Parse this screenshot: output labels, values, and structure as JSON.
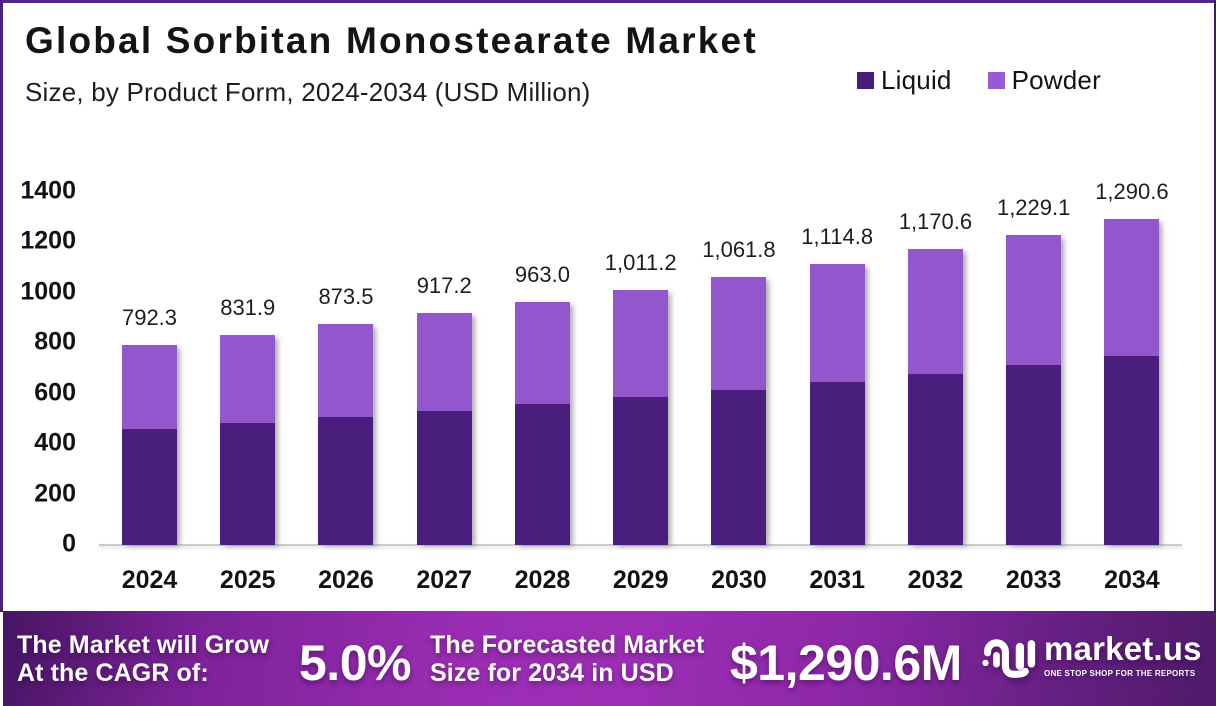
{
  "header": {
    "title": "Global Sorbitan Monostearate Market",
    "subtitle": "Size, by Product Form, 2024-2034 (USD Million)"
  },
  "legend": {
    "items": [
      {
        "label": "Liquid",
        "color": "#491d7c"
      },
      {
        "label": "Powder",
        "color": "#9859d4"
      }
    ]
  },
  "chart_data": {
    "type": "bar",
    "stacked": true,
    "title": "Global Sorbitan Monostearate Market",
    "subtitle": "Size, by Product Form, 2024-2034 (USD Million)",
    "unit": "USD Million",
    "categories": [
      "2024",
      "2025",
      "2026",
      "2027",
      "2028",
      "2029",
      "2030",
      "2031",
      "2032",
      "2033",
      "2034"
    ],
    "series": [
      {
        "name": "Liquid",
        "color": "#4a1e7c",
        "values": [
          458.4,
          481.3,
          505.3,
          530.6,
          557.1,
          585.0,
          614.2,
          644.9,
          677.2,
          711.0,
          746.6
        ]
      },
      {
        "name": "Powder",
        "color": "#9356cd",
        "values": [
          333.9,
          350.6,
          368.2,
          386.6,
          405.9,
          426.2,
          447.6,
          469.9,
          493.4,
          518.1,
          544.0
        ]
      }
    ],
    "totals": [
      792.3,
      831.9,
      873.5,
      917.2,
      963.0,
      1011.2,
      1061.8,
      1114.8,
      1170.6,
      1229.1,
      1290.6
    ],
    "total_labels": [
      "792.3",
      "831.9",
      "873.5",
      "917.2",
      "963.0",
      "1,011.2",
      "1,061.8",
      "1,114.8",
      "1,170.6",
      "1,229.1",
      "1,290.6"
    ],
    "ylim": [
      0,
      1400
    ],
    "yticks": [
      0,
      200,
      400,
      600,
      800,
      1000,
      1200,
      1400
    ],
    "grid": false,
    "legend_position": "top-right"
  },
  "banner": {
    "cagr_label_line1": "The Market will Grow",
    "cagr_label_line2": "At the CAGR of:",
    "cagr_value": "5.0%",
    "forecast_label_line1": "The Forecasted Market",
    "forecast_label_line2": "Size for 2034 in USD",
    "forecast_value": "$1,290.6M",
    "brand": {
      "name": "market.us",
      "tagline": "ONE STOP SHOP FOR THE REPORTS"
    },
    "gradient": [
      "#471563",
      "#7c2298",
      "#9a2db3",
      "#9c2fb5",
      "#8c27a6",
      "#672085",
      "#4f1a68"
    ]
  }
}
